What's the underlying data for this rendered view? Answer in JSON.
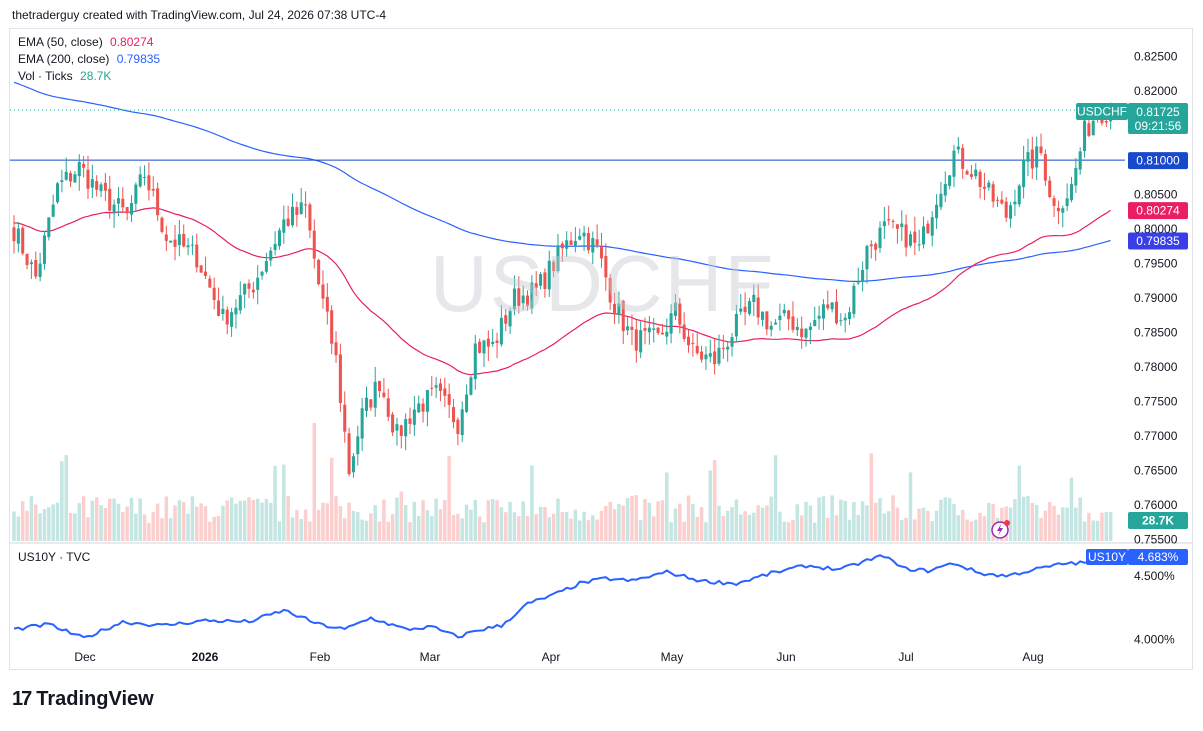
{
  "header": {
    "text": "thetraderguy created with TradingView.com, Jul 24, 2026 07:38 UTC-4"
  },
  "watermark": "USDCHF",
  "legend_main": {
    "ema50": {
      "label": "EMA (50, close)",
      "value": "0.80274",
      "color": "#e91e63"
    },
    "ema200": {
      "label": "EMA (200, close)",
      "value": "0.79835",
      "color": "#2962ff"
    },
    "vol": {
      "label": "Vol · Ticks",
      "value": "28.7K",
      "color": "#26a69a"
    }
  },
  "legend_sub": {
    "label": "US10Y · TVC"
  },
  "badges": {
    "symbol": "USDCHF",
    "price": "0.81725",
    "countdown": "09:21:56",
    "level": "0.81000",
    "ema50": "0.80274",
    "ema200": "0.79835",
    "vol": "28.7K",
    "us10y_symbol": "US10Y",
    "us10y": "4.683%"
  },
  "brand": {
    "name": "TradingView"
  },
  "colors": {
    "up": "#26a69a",
    "down": "#ef5350",
    "ema50": "#e91e63",
    "ema200": "#2962ff",
    "level": "#1848cc"
  },
  "chart_data": [
    {
      "type": "candlestick",
      "symbol": "USDCHF",
      "x_labels": [
        "Dec",
        "2026",
        "Feb",
        "Mar",
        "Apr",
        "May",
        "Jun",
        "Jul",
        "Aug"
      ],
      "y_ticks": [
        "0.82500",
        "0.82000",
        "0.81500",
        "0.81000",
        "0.80500",
        "0.80000",
        "0.79500",
        "0.79000",
        "0.78500",
        "0.78000",
        "0.77500",
        "0.77000",
        "0.76500",
        "0.76000",
        "0.75500"
      ],
      "ylim": [
        0.7545,
        0.829
      ],
      "last_price": 0.81725,
      "horizontal_level": 0.81,
      "ema50": {
        "start": 0.801,
        "end": 0.80274
      },
      "ema200": {
        "start": 0.8215,
        "end": 0.79835
      },
      "close_path": [
        [
          0,
          0.8
        ],
        [
          5,
          0.793
        ],
        [
          10,
          0.806
        ],
        [
          15,
          0.809
        ],
        [
          20,
          0.805
        ],
        [
          26,
          0.802
        ],
        [
          30,
          0.808
        ],
        [
          35,
          0.799
        ],
        [
          42,
          0.796
        ],
        [
          48,
          0.787
        ],
        [
          55,
          0.792
        ],
        [
          62,
          0.801
        ],
        [
          67,
          0.803
        ],
        [
          70,
          0.792
        ],
        [
          74,
          0.781
        ],
        [
          77,
          0.765
        ],
        [
          80,
          0.773
        ],
        [
          84,
          0.778
        ],
        [
          88,
          0.77
        ],
        [
          92,
          0.774
        ],
        [
          97,
          0.776
        ],
        [
          102,
          0.772
        ],
        [
          106,
          0.783
        ],
        [
          110,
          0.783
        ],
        [
          115,
          0.79
        ],
        [
          120,
          0.791
        ],
        [
          126,
          0.797
        ],
        [
          130,
          0.8
        ],
        [
          134,
          0.797
        ],
        [
          138,
          0.789
        ],
        [
          142,
          0.784
        ],
        [
          148,
          0.784
        ],
        [
          152,
          0.788
        ],
        [
          156,
          0.782
        ],
        [
          161,
          0.781
        ],
        [
          166,
          0.786
        ],
        [
          170,
          0.789
        ],
        [
          174,
          0.786
        ],
        [
          178,
          0.787
        ],
        [
          182,
          0.785
        ],
        [
          187,
          0.789
        ],
        [
          191,
          0.787
        ],
        [
          196,
          0.797
        ],
        [
          200,
          0.8
        ],
        [
          205,
          0.799
        ],
        [
          208,
          0.797
        ],
        [
          212,
          0.805
        ],
        [
          216,
          0.811
        ],
        [
          221,
          0.808
        ],
        [
          224,
          0.805
        ],
        [
          228,
          0.802
        ],
        [
          232,
          0.809
        ],
        [
          236,
          0.811
        ],
        [
          239,
          0.803
        ],
        [
          243,
          0.806
        ],
        [
          246,
          0.814
        ],
        [
          249,
          0.817
        ],
        [
          252,
          0.81725
        ]
      ]
    },
    {
      "type": "line",
      "symbol": "US10Y",
      "y_ticks": [
        "4.500%",
        "4.000%"
      ],
      "ylim": [
        3.95,
        4.75
      ],
      "values": [
        [
          0,
          4.08
        ],
        [
          8,
          4.12
        ],
        [
          16,
          4.01
        ],
        [
          25,
          4.14
        ],
        [
          34,
          4.11
        ],
        [
          44,
          4.15
        ],
        [
          54,
          4.14
        ],
        [
          62,
          4.23
        ],
        [
          70,
          4.12
        ],
        [
          76,
          4.08
        ],
        [
          82,
          4.17
        ],
        [
          90,
          4.08
        ],
        [
          96,
          4.1
        ],
        [
          102,
          4.02
        ],
        [
          106,
          4.07
        ],
        [
          112,
          4.11
        ],
        [
          118,
          4.28
        ],
        [
          124,
          4.35
        ],
        [
          130,
          4.44
        ],
        [
          136,
          4.48
        ],
        [
          142,
          4.46
        ],
        [
          150,
          4.53
        ],
        [
          158,
          4.46
        ],
        [
          166,
          4.44
        ],
        [
          174,
          4.52
        ],
        [
          182,
          4.58
        ],
        [
          190,
          4.55
        ],
        [
          196,
          4.62
        ],
        [
          200,
          4.66
        ],
        [
          204,
          4.56
        ],
        [
          210,
          4.54
        ],
        [
          216,
          4.6
        ],
        [
          222,
          4.52
        ],
        [
          228,
          4.5
        ],
        [
          236,
          4.56
        ],
        [
          242,
          4.6
        ],
        [
          246,
          4.6
        ],
        [
          252,
          4.683
        ]
      ]
    },
    {
      "type": "bar",
      "name": "Vol · Ticks",
      "last_value": "28.7K"
    }
  ]
}
